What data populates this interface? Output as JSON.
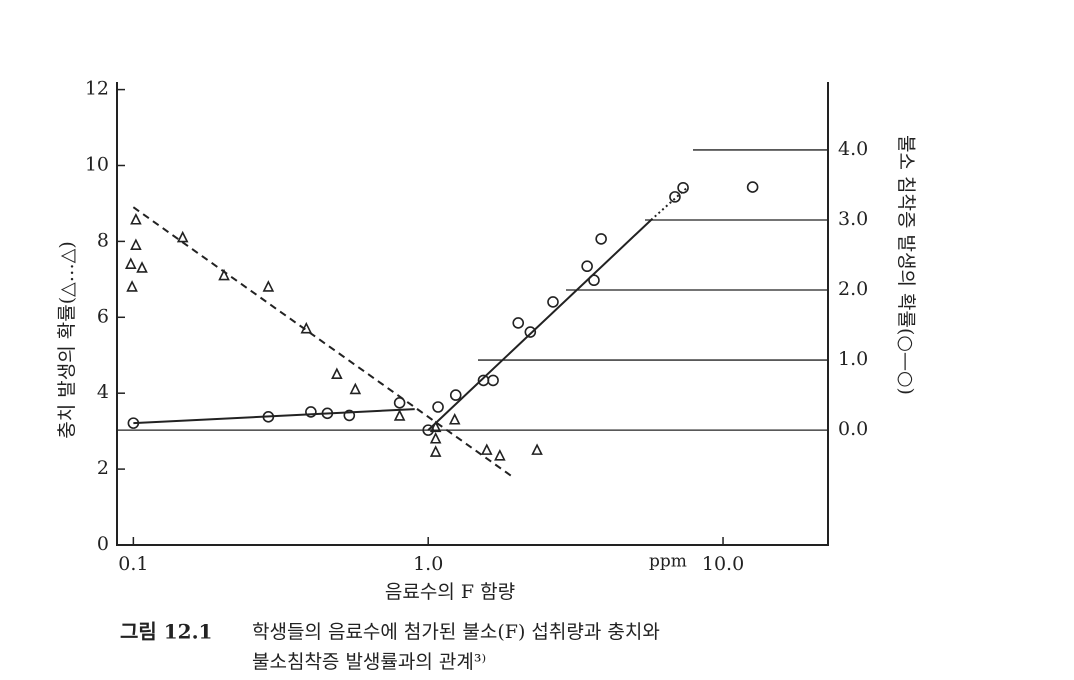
{
  "chart_data": {
    "type": "scatter",
    "x_label": "음료수의 F 함량",
    "x_unit": "ppm",
    "y_label": "충치 발생의 확률(△…△)",
    "y2_label": "불소 침착증 발생의 확률(○—○)",
    "caption_label": "그림 12.1",
    "caption_lines": [
      "학생들의 음료수에 첨가된 불소(F) 섭취량과 충치와",
      "불소침착증 발생률과의 관계³⁾"
    ],
    "xscale": "log",
    "xlim": [
      0.088,
      22.7
    ],
    "xticks": [
      {
        "value": 0.1,
        "label": "0.1"
      },
      {
        "value": 1,
        "label": "1.0"
      },
      {
        "value": 10,
        "label": "10.0"
      }
    ],
    "ylim": [
      0,
      12.2
    ],
    "yticks": [
      0,
      2,
      4,
      6,
      8,
      10,
      12
    ],
    "y2lim": [
      -1.64,
      4.97
    ],
    "y2ticks": [
      {
        "value": 0,
        "label": "0.0"
      },
      {
        "value": 1,
        "label": "1.0"
      },
      {
        "value": 2,
        "label": "2.0"
      },
      {
        "value": 3,
        "label": "3.0"
      },
      {
        "value": 4,
        "label": "4.0"
      }
    ],
    "color": "#222222",
    "series": [
      {
        "marker": "triangle",
        "x": [
          0.102,
          0.102,
          0.098,
          0.107,
          0.099,
          0.147,
          0.203,
          0.287,
          0.386,
          0.49,
          0.566,
          0.8,
          1.06,
          1.06,
          1.06,
          1.23,
          1.58,
          1.75,
          2.34
        ],
        "values": [
          8.57,
          7.9,
          7.4,
          7.3,
          6.8,
          8.1,
          7.1,
          6.8,
          5.7,
          4.5,
          4.1,
          3.4,
          3.1,
          2.8,
          2.45,
          3.3,
          2.5,
          2.35,
          2.5
        ]
      },
      {
        "marker": "circle",
        "axis": "y2",
        "x": [
          0.1,
          0.287,
          0.4,
          0.455,
          0.54,
          0.8,
          1.0,
          1.08,
          1.24,
          1.54,
          1.66,
          2.02,
          2.22,
          2.65,
          3.46,
          3.65,
          3.86,
          6.87,
          7.32,
          12.6
        ],
        "values": [
          0.1,
          0.19,
          0.26,
          0.24,
          0.21,
          0.39,
          0.0,
          0.33,
          0.5,
          0.71,
          0.71,
          1.53,
          1.4,
          1.83,
          2.34,
          2.14,
          2.73,
          3.33,
          3.46,
          3.47
        ]
      },
      {
        "line": "dashed",
        "x": [
          0.1,
          1.93
        ],
        "values": [
          8.9,
          1.8
        ]
      },
      {
        "line": "solid",
        "axis": "y2",
        "x": [
          0.1,
          0.9
        ],
        "values": [
          0.1,
          0.3
        ]
      },
      {
        "line": "solid",
        "axis": "y2",
        "x": [
          1.0,
          5.7
        ],
        "values": [
          0.0,
          3.0
        ]
      },
      {
        "line": "dotted",
        "axis": "y2",
        "x": [
          5.7,
          7.5
        ],
        "values": [
          3.0,
          3.45
        ]
      }
    ]
  }
}
